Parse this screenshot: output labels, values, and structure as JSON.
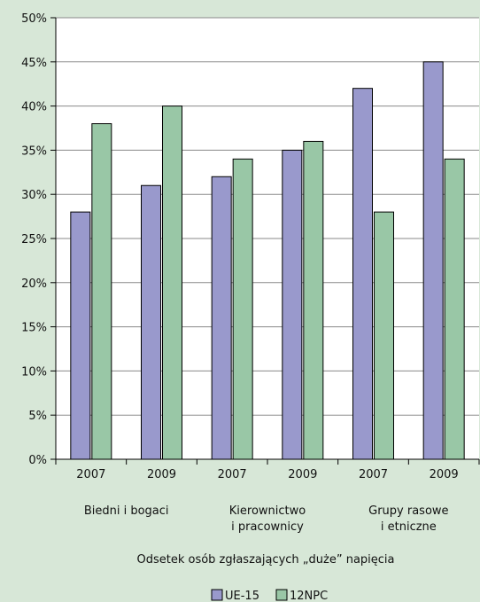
{
  "chart_data": {
    "type": "bar",
    "categories": [
      "2007",
      "2009",
      "2007",
      "2009",
      "2007",
      "2009"
    ],
    "groups": [
      [
        "Biedni i bogaci"
      ],
      [
        "Kierownictwo",
        "i pracownicy"
      ],
      [
        "Grupy rasowe",
        "i etniczne"
      ]
    ],
    "series": [
      {
        "name": "UE-15",
        "values": [
          28,
          31,
          32,
          35,
          42,
          45
        ],
        "color": "#9999cc"
      },
      {
        "name": "12NPC",
        "values": [
          38,
          40,
          34,
          36,
          28,
          34
        ],
        "color": "#99c7a6"
      }
    ],
    "xlabel": "Odsetek osób zgłaszających „duże” napięcia",
    "ylabel": "",
    "ylim": [
      0,
      50
    ],
    "yticks": [
      "0%",
      "5%",
      "10%",
      "15%",
      "20%",
      "25%",
      "30%",
      "35%",
      "40%",
      "45%",
      "50%"
    ],
    "grid": true,
    "legend": "bottom"
  }
}
